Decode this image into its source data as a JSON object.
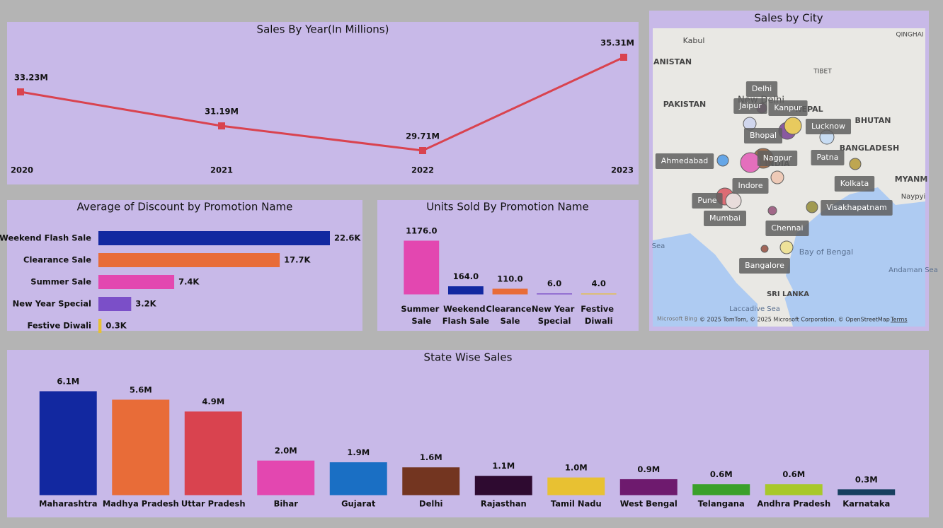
{
  "chart_data": [
    {
      "type": "line",
      "title": "Sales By Year(In Millions)",
      "categories": [
        "2020",
        "2021",
        "2022",
        "2023"
      ],
      "values": [
        33.23,
        31.19,
        29.71,
        35.31
      ],
      "value_labels": [
        "33.23M",
        "31.19M",
        "29.71M",
        "35.31M"
      ],
      "color": "#d9434f"
    },
    {
      "type": "barh",
      "title": "Average of Discount by Promotion Name",
      "categories": [
        "Weekend Flash Sale",
        "Clearance Sale",
        "Summer Sale",
        "New Year Special",
        "Festive Diwali"
      ],
      "values": [
        22.6,
        17.7,
        7.4,
        3.2,
        0.3
      ],
      "value_labels": [
        "22.6K",
        "17.7K",
        "7.4K",
        "3.2K",
        "0.3K"
      ],
      "colors": [
        "#1228a0",
        "#e86c38",
        "#e347b0",
        "#7b4fc8",
        "#e8c132"
      ]
    },
    {
      "type": "bar",
      "title": "Units Sold By Promotion Name",
      "categories": [
        "Summer Sale",
        "Weekend Flash Sale",
        "Clearance Sale",
        "New Year Special",
        "Festive Diwali"
      ],
      "values": [
        1176,
        164,
        110,
        6,
        4
      ],
      "value_labels": [
        "1176.0",
        "164.0",
        "110.0",
        "6.0",
        "4.0"
      ],
      "colors": [
        "#e347b0",
        "#1228a0",
        "#e86c38",
        "#7b4fc8",
        "#e8c132"
      ]
    },
    {
      "type": "bar",
      "title": "State Wise Sales",
      "categories": [
        "Maharashtra",
        "Madhya Pradesh",
        "Uttar Pradesh",
        "Bihar",
        "Gujarat",
        "Delhi",
        "Rajasthan",
        "Tamil Nadu",
        "West Bengal",
        "Telangana",
        "Andhra Pradesh",
        "Karnataka"
      ],
      "values": [
        6.1,
        5.6,
        4.9,
        2.0,
        1.9,
        1.6,
        1.1,
        1.0,
        0.9,
        0.6,
        0.6,
        0.3
      ],
      "value_labels": [
        "6.1M",
        "5.6M",
        "4.9M",
        "2.0M",
        "1.9M",
        "1.6M",
        "1.1M",
        "1.0M",
        "0.9M",
        "0.6M",
        "0.6M",
        "0.3M"
      ],
      "colors": [
        "#1228a0",
        "#e86c38",
        "#d9434f",
        "#e347b0",
        "#1a6fc4",
        "#733520",
        "#2e0a30",
        "#e8c132",
        "#6e1a6e",
        "#3aa02a",
        "#a8c82a",
        "#173f5f"
      ]
    }
  ],
  "map": {
    "title": "Sales by City",
    "cities": [
      "Delhi",
      "Jaipur",
      "Kanpur",
      "Lucknow",
      "Bhopal",
      "Nagpur",
      "Patna",
      "Ahmedabad",
      "Indore",
      "Kolkata",
      "Pune",
      "Mumbai",
      "Visakhapatnam",
      "Chennai",
      "Bangalore"
    ],
    "places": [
      "Kabul",
      "ANISTAN",
      "PAKISTAN",
      "TIBET",
      "QINGHAI",
      "New Delhi",
      "NEPAL",
      "BHUTAN",
      "BANGLADESH",
      "INDIA",
      "MYANM",
      "Naypyi",
      "Bay of Bengal",
      "SRI LANKA",
      "Laccadive Sea",
      "Andaman Sea",
      "Sea"
    ],
    "attribution": "© 2025 TomTom, © 2025 Microsoft Corporation, © OpenStreetMap",
    "terms": "Terms",
    "brand": "Microsoft Bing"
  }
}
